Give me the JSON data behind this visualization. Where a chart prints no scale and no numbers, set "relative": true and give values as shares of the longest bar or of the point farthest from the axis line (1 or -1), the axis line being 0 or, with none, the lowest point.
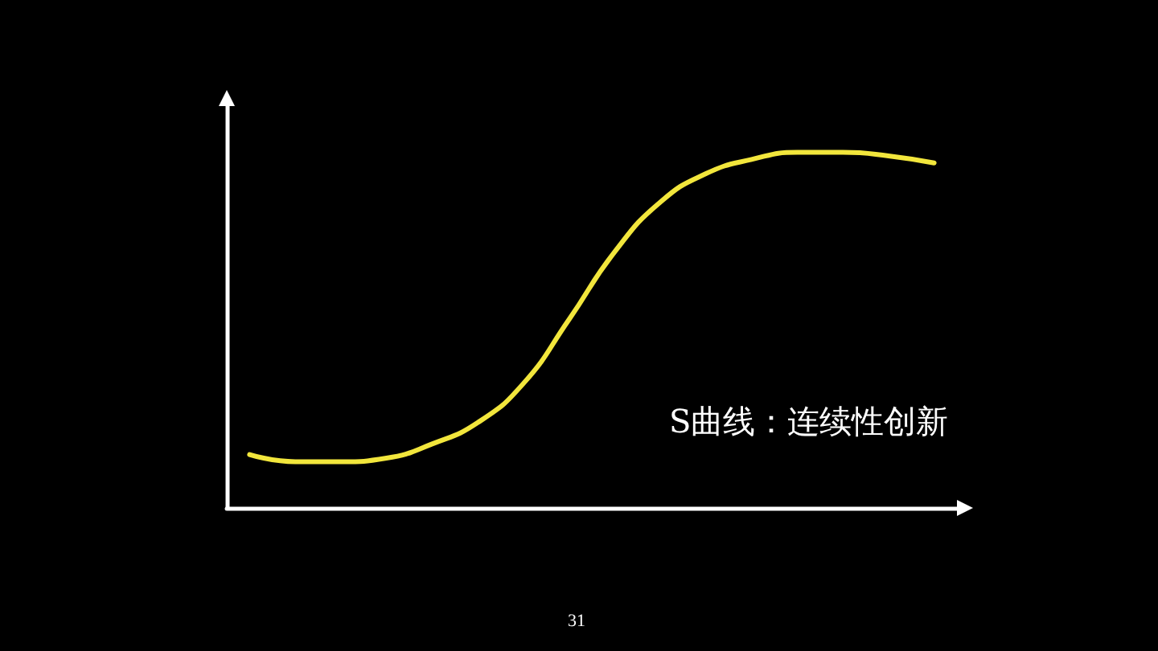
{
  "chart_data": {
    "type": "line",
    "relative": true,
    "categories": [
      null,
      null,
      null,
      null,
      null,
      null,
      null,
      null,
      null,
      null,
      null,
      null,
      null,
      null,
      null,
      null
    ],
    "series": [
      {
        "color": "#f2e63c",
        "values": [
          0.15,
          0.13,
          0.13,
          0.14,
          0.18,
          0.24,
          0.35,
          0.53,
          0.72,
          0.86,
          0.94,
          0.98,
          1.0,
          1.0,
          0.99,
          0.97
        ]
      }
    ],
    "annotations": [
      "S曲线：连续性创新",
      "31"
    ],
    "grid": false,
    "marker": "none",
    "line_style": "solid"
  }
}
